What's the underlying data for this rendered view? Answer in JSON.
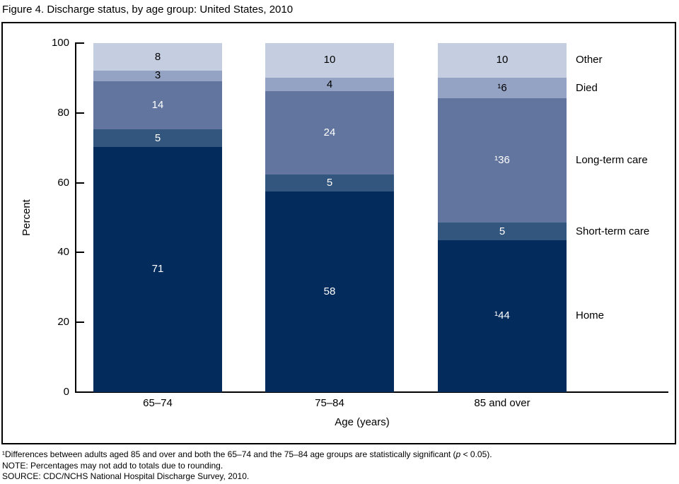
{
  "figure": {
    "title": "Figure 4. Discharge status, by age group: United States, 2010",
    "footnotes": {
      "line1_pre": "¹Differences between adults aged 85 and over and both the 65–74 and the 75–84 age groups are statistically significant (",
      "line1_italic": "p",
      "line1_post": " < 0.05).",
      "line2": "NOTE: Percentages may not add to totals due to rounding.",
      "line3": "SOURCE: CDC/NCHS National Hospital Discharge Survey, 2010."
    }
  },
  "chart_data": {
    "type": "bar",
    "stacked": true,
    "title": "Figure 4. Discharge status, by age group: United States, 2010",
    "categories": [
      "65–74",
      "75–84",
      "85 and over"
    ],
    "series_order": "bottom-to-top",
    "series": [
      {
        "name": "Home",
        "color": "#032b5c",
        "label_color": "#ffffff",
        "values": [
          71,
          58,
          44
        ],
        "labels": [
          "71",
          "58",
          "¹44"
        ]
      },
      {
        "name": "Short-term care",
        "color": "#33567f",
        "label_color": "#ffffff",
        "values": [
          5,
          5,
          5
        ],
        "labels": [
          "5",
          "5",
          "5"
        ]
      },
      {
        "name": "Long-term care",
        "color": "#62759e",
        "label_color": "#ffffff",
        "values": [
          14,
          24,
          36
        ],
        "labels": [
          "14",
          "24",
          "¹36"
        ]
      },
      {
        "name": "Died",
        "color": "#94a3c4",
        "label_color": "#000000",
        "values": [
          3,
          4,
          6
        ],
        "labels": [
          "3",
          "4",
          "¹6"
        ]
      },
      {
        "name": "Other",
        "color": "#c5cde1",
        "label_color": "#000000",
        "values": [
          8,
          10,
          10
        ],
        "labels": [
          "8",
          "10",
          "10"
        ]
      }
    ],
    "xlabel": "Age (years)",
    "ylabel": "Percent",
    "yticks": [
      0,
      20,
      40,
      60,
      80,
      100
    ],
    "ylim": [
      0,
      100
    ],
    "grid": false,
    "legend_position": "right-of-last-bar",
    "legend_labels_top_to_bottom": [
      "Other",
      "Died",
      "Long-term care",
      "Short-term care",
      "Home"
    ]
  }
}
